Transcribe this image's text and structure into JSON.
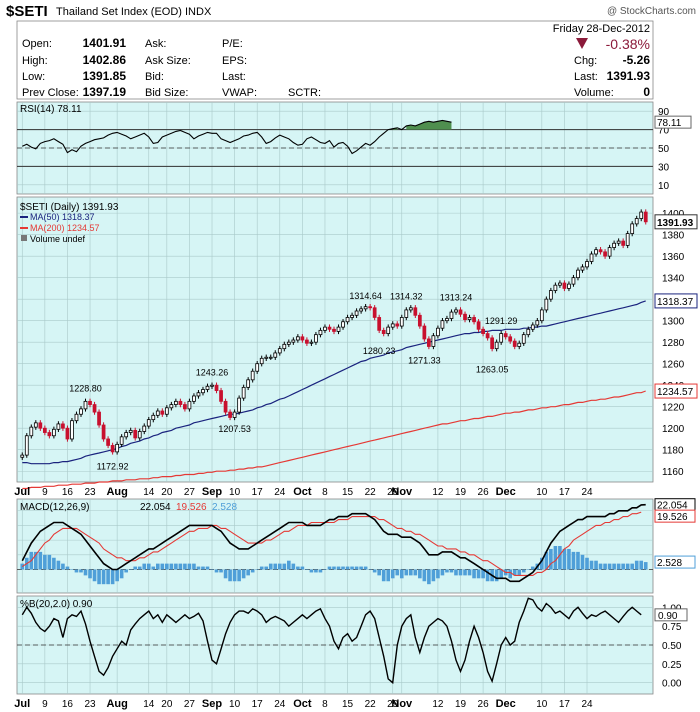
{
  "header": {
    "symbol": "$SETI",
    "name": "Thailand Set Index (EOD)  INDX",
    "brand": "@ StockCharts.com"
  },
  "quote": {
    "date": "Friday  28-Dec-2012",
    "pct_change": "-0.38%",
    "rows": [
      [
        "Open:",
        "1401.91",
        "Ask:",
        "",
        "P/E:",
        ""
      ],
      [
        "High:",
        "1402.86",
        "Ask Size:",
        "",
        "EPS:",
        ""
      ],
      [
        "Low:",
        "1391.85",
        "Bid:",
        "",
        "Last:",
        ""
      ],
      [
        "Prev Close:",
        "1397.19",
        "Bid Size:",
        "",
        "VWAP:",
        "SCTR:"
      ]
    ],
    "right_rows": [
      [
        "Chg:",
        "-5.26"
      ],
      [
        "Last:",
        "1391.93"
      ],
      [
        "Volume:",
        "0"
      ]
    ]
  },
  "colors": {
    "panel_bg": "#d6f5f5",
    "grid": "#a9c9c9",
    "up": "#000000",
    "down": "#c8102e",
    "ma50": "#1a237e",
    "ma200": "#e53935",
    "macd": "#000000",
    "signal": "#e53935",
    "histogram": "#4f9fd8",
    "rsi_fill": "#4f8f4f",
    "down_arrow": "#8b1a3a"
  },
  "chart_data": [
    {
      "type": "line",
      "title": "RSI(14) 78.11",
      "last_value": "78.11",
      "ylim": [
        0,
        100
      ],
      "yticks": [
        10,
        30,
        50,
        70,
        90
      ],
      "levels": [
        30,
        70
      ],
      "values": [
        52,
        54,
        51,
        49,
        55,
        57,
        58,
        60,
        57,
        54,
        45,
        48,
        46,
        52,
        55,
        57,
        59,
        60,
        61,
        64,
        66,
        67,
        65,
        63,
        60,
        62,
        64,
        66,
        62,
        55,
        56,
        62,
        64,
        66,
        68,
        69,
        67,
        65,
        60,
        63,
        65,
        67,
        66,
        66,
        60,
        58,
        56,
        58,
        60,
        63,
        64,
        66,
        67,
        62,
        55,
        57,
        61,
        64,
        62,
        60,
        56,
        53,
        54,
        60,
        62,
        59,
        56,
        55,
        58,
        51,
        55,
        56,
        52,
        44,
        47,
        51,
        55,
        53,
        57,
        62,
        66,
        70,
        71,
        72,
        70,
        74,
        75,
        74,
        76,
        78,
        79,
        78,
        79,
        80,
        79,
        78
      ]
    },
    {
      "type": "candlestick",
      "title": "$SETI (Daily) 1391.93",
      "series_labels": [
        "MA(50) 1318.37",
        "MA(200) 1234.57",
        "Volume undef"
      ],
      "last_value": "1391.93",
      "ma50_last": "1318.37",
      "ma200_last": "1234.57",
      "ylim": [
        1150,
        1415
      ],
      "yticks": [
        1160,
        1180,
        1200,
        1220,
        1240,
        1260,
        1280,
        1300,
        1320,
        1340,
        1360,
        1380,
        1400
      ],
      "xticks": [
        "Jul",
        "9",
        "16",
        "23",
        "Aug",
        "14",
        "20",
        "27",
        "Sep",
        "10",
        "17",
        "24",
        "Oct",
        "8",
        "15",
        "22",
        "29",
        "Nov",
        "12",
        "19",
        "26",
        "Dec",
        "10",
        "17",
        "24"
      ],
      "annotations": [
        {
          "label": "1228.80",
          "index": 14,
          "value": 1228.8,
          "pos": "above"
        },
        {
          "label": "1172.92",
          "index": 20,
          "value": 1172.92,
          "pos": "below"
        },
        {
          "label": "1243.26",
          "index": 42,
          "value": 1243.26,
          "pos": "above"
        },
        {
          "label": "1207.53",
          "index": 47,
          "value": 1207.53,
          "pos": "below"
        },
        {
          "label": "1314.64",
          "index": 76,
          "value": 1314.64,
          "pos": "above"
        },
        {
          "label": "1280.23",
          "index": 79,
          "value": 1280.23,
          "pos": "below"
        },
        {
          "label": "1314.32",
          "index": 85,
          "value": 1314.32,
          "pos": "above"
        },
        {
          "label": "1271.33",
          "index": 89,
          "value": 1271.33,
          "pos": "below"
        },
        {
          "label": "1313.24",
          "index": 96,
          "value": 1313.24,
          "pos": "above"
        },
        {
          "label": "1263.05",
          "index": 104,
          "value": 1263.05,
          "pos": "below"
        },
        {
          "label": "1291.29",
          "index": 106,
          "value": 1291.29,
          "pos": "above"
        }
      ],
      "close": [
        1175,
        1193,
        1201,
        1205,
        1200,
        1196,
        1193,
        1199,
        1204,
        1200,
        1190,
        1207,
        1213,
        1218,
        1225,
        1222,
        1215,
        1203,
        1190,
        1184,
        1178,
        1185,
        1192,
        1196,
        1198,
        1191,
        1197,
        1202,
        1208,
        1212,
        1216,
        1213,
        1219,
        1222,
        1225,
        1222,
        1218,
        1225,
        1230,
        1233,
        1236,
        1239,
        1240,
        1235,
        1225,
        1215,
        1210,
        1215,
        1228,
        1238,
        1245,
        1253,
        1260,
        1265,
        1266,
        1266,
        1270,
        1274,
        1278,
        1280,
        1282,
        1285,
        1282,
        1279,
        1280,
        1287,
        1291,
        1294,
        1292,
        1290,
        1294,
        1299,
        1303,
        1305,
        1309,
        1311,
        1313,
        1312,
        1303,
        1291,
        1288,
        1294,
        1297,
        1295,
        1303,
        1310,
        1312,
        1305,
        1295,
        1283,
        1276,
        1286,
        1293,
        1300,
        1302,
        1308,
        1310,
        1306,
        1301,
        1303,
        1299,
        1292,
        1288,
        1284,
        1274,
        1280,
        1288,
        1285,
        1281,
        1276,
        1279,
        1287,
        1292,
        1296,
        1300,
        1310,
        1320,
        1328,
        1333,
        1335,
        1330,
        1334,
        1340,
        1347,
        1350,
        1355,
        1362,
        1366,
        1364,
        1360,
        1368,
        1372,
        1374,
        1370,
        1381,
        1390,
        1395,
        1401,
        1391.93
      ],
      "ma50": [
        1168,
        1168,
        1167,
        1167,
        1167,
        1167,
        1167,
        1168,
        1168,
        1169,
        1169,
        1170,
        1171,
        1172,
        1174,
        1175,
        1176,
        1177,
        1178,
        1179,
        1180,
        1181,
        1183,
        1184,
        1186,
        1187,
        1188,
        1190,
        1191,
        1193,
        1194,
        1196,
        1197,
        1198,
        1200,
        1201,
        1202,
        1203,
        1205,
        1206,
        1207,
        1208,
        1209,
        1210,
        1211,
        1212,
        1213,
        1213,
        1214,
        1215,
        1216,
        1217,
        1219,
        1220,
        1222,
        1223,
        1225,
        1227,
        1228,
        1230,
        1232,
        1234,
        1236,
        1238,
        1240,
        1242,
        1244,
        1246,
        1248,
        1250,
        1252,
        1254,
        1256,
        1258,
        1260,
        1262,
        1263,
        1265,
        1266,
        1267,
        1268,
        1270,
        1271,
        1272,
        1273,
        1275,
        1276,
        1277,
        1278,
        1279,
        1280,
        1281,
        1282,
        1283,
        1284,
        1285,
        1286,
        1287,
        1288,
        1288,
        1289,
        1289,
        1290,
        1290,
        1291,
        1291,
        1291,
        1292,
        1292,
        1292,
        1292,
        1293,
        1293,
        1294,
        1294,
        1295,
        1295,
        1296,
        1297,
        1298,
        1299,
        1300,
        1301,
        1302,
        1303,
        1304,
        1305,
        1306,
        1307,
        1308,
        1309,
        1310,
        1311,
        1312,
        1313,
        1314,
        1315,
        1317,
        1318.37
      ],
      "ma200": [
        1144,
        1144,
        1145,
        1145,
        1145,
        1146,
        1146,
        1146,
        1147,
        1147,
        1147,
        1148,
        1148,
        1148,
        1149,
        1149,
        1149,
        1150,
        1150,
        1150,
        1151,
        1151,
        1151,
        1152,
        1152,
        1152,
        1153,
        1153,
        1153,
        1154,
        1154,
        1155,
        1155,
        1155,
        1156,
        1156,
        1157,
        1157,
        1157,
        1158,
        1158,
        1159,
        1159,
        1160,
        1160,
        1160,
        1161,
        1161,
        1162,
        1162,
        1163,
        1163,
        1164,
        1164,
        1165,
        1166,
        1167,
        1168,
        1169,
        1170,
        1171,
        1172,
        1173,
        1174,
        1175,
        1176,
        1177,
        1178,
        1179,
        1180,
        1181,
        1182,
        1183,
        1184,
        1185,
        1186,
        1187,
        1188,
        1189,
        1190,
        1191,
        1192,
        1193,
        1194,
        1195,
        1196,
        1197,
        1198,
        1199,
        1200,
        1201,
        1202,
        1203,
        1204,
        1204,
        1205,
        1206,
        1207,
        1207,
        1208,
        1209,
        1209,
        1210,
        1211,
        1211,
        1212,
        1213,
        1214,
        1214,
        1215,
        1215,
        1216,
        1217,
        1217,
        1218,
        1219,
        1219,
        1220,
        1220,
        1221,
        1222,
        1222,
        1223,
        1224,
        1224,
        1225,
        1226,
        1226,
        1227,
        1227,
        1228,
        1229,
        1229,
        1230,
        1231,
        1232,
        1233,
        1233,
        1234.57
      ]
    },
    {
      "type": "line",
      "title": "MACD(12,26,9)",
      "legend": [
        "22.054",
        "19.526",
        "2.528"
      ],
      "last_values": [
        "22.054",
        "19.526",
        "2.528"
      ],
      "ylim": [
        -8,
        24
      ],
      "macd": [
        3,
        6,
        9,
        11,
        13,
        14,
        15,
        16,
        16,
        16,
        15,
        14,
        13,
        12,
        10,
        8,
        6,
        4,
        2,
        1,
        0,
        0,
        1,
        2,
        3,
        4,
        5,
        6,
        7,
        7,
        8,
        9,
        10,
        11,
        12,
        13,
        14,
        15,
        15,
        15,
        15,
        15,
        15,
        14,
        13,
        11,
        9,
        8,
        7,
        7,
        7,
        8,
        9,
        10,
        11,
        12,
        13,
        14,
        15,
        16,
        16,
        16,
        16,
        15,
        15,
        15,
        15,
        16,
        17,
        17,
        18,
        18,
        18,
        19,
        19,
        19,
        19,
        18,
        17,
        15,
        13,
        12,
        12,
        12,
        11,
        11,
        11,
        10,
        9,
        7,
        5,
        5,
        5,
        6,
        6,
        6,
        5,
        4,
        4,
        3,
        2,
        1,
        0,
        -1,
        -2,
        -3,
        -3,
        -3,
        -4,
        -4,
        -4,
        -3,
        -2,
        -1,
        1,
        3,
        6,
        9,
        11,
        13,
        14,
        15,
        16,
        17,
        17,
        18,
        18,
        18,
        18,
        18,
        19,
        19,
        20,
        20,
        20,
        21,
        21,
        22,
        22.054
      ],
      "signal": [
        1,
        2,
        3,
        5,
        7,
        9,
        10,
        12,
        13,
        14,
        14,
        14,
        14,
        13,
        12,
        11,
        10,
        9,
        7,
        6,
        5,
        4,
        4,
        3,
        3,
        3,
        4,
        4,
        5,
        6,
        6,
        7,
        8,
        9,
        10,
        11,
        12,
        13,
        13,
        14,
        14,
        14,
        15,
        15,
        14,
        14,
        13,
        12,
        11,
        10,
        9,
        9,
        9,
        9,
        10,
        10,
        11,
        12,
        13,
        13,
        14,
        15,
        15,
        15,
        16,
        16,
        16,
        16,
        16,
        16,
        17,
        17,
        17,
        18,
        18,
        18,
        18,
        18,
        18,
        17,
        17,
        16,
        15,
        14,
        14,
        13,
        13,
        12,
        12,
        11,
        10,
        9,
        8,
        8,
        7,
        7,
        7,
        6,
        6,
        5,
        5,
        4,
        3,
        3,
        2,
        1,
        0,
        -1,
        -1,
        -2,
        -2,
        -2,
        -2,
        -2,
        -1,
        -1,
        0,
        2,
        3,
        5,
        7,
        8,
        10,
        11,
        12,
        13,
        14,
        15,
        15,
        16,
        16,
        17,
        17,
        18,
        18,
        19,
        19,
        19.526
      ],
      "histogram": [
        2,
        4,
        6,
        6,
        6,
        5,
        5,
        4,
        3,
        2,
        1,
        0,
        -1,
        -1,
        -2,
        -3,
        -4,
        -5,
        -5,
        -5,
        -5,
        -4,
        -3,
        -1,
        0,
        1,
        1,
        2,
        2,
        1,
        2,
        2,
        2,
        2,
        2,
        2,
        2,
        2,
        2,
        1,
        1,
        1,
        0,
        -1,
        -1,
        -3,
        -4,
        -4,
        -4,
        -3,
        -2,
        -1,
        0,
        1,
        1,
        2,
        2,
        2,
        2,
        3,
        2,
        1,
        1,
        0,
        -1,
        -1,
        -1,
        0,
        1,
        1,
        1,
        1,
        1,
        1,
        1,
        1,
        1,
        0,
        -1,
        -2,
        -4,
        -4,
        -3,
        -2,
        -3,
        -2,
        -2,
        -2,
        -3,
        -4,
        -5,
        -4,
        -3,
        -2,
        -1,
        -1,
        -2,
        -2,
        -2,
        -2,
        -3,
        -3,
        -3,
        -4,
        -4,
        -4,
        -3,
        -2,
        -3,
        -2,
        -2,
        -1,
        0,
        1,
        2,
        4,
        6,
        7,
        8,
        8,
        7,
        7,
        6,
        6,
        5,
        4,
        3,
        3,
        2,
        2,
        2,
        2,
        2,
        2,
        2,
        2,
        3,
        3,
        2.528
      ]
    },
    {
      "type": "line",
      "title": "%B(20,2.0) 0.90",
      "last_value": "0.90",
      "ylim": [
        -0.15,
        1.15
      ],
      "yticks": [
        0.0,
        0.25,
        0.5,
        0.75,
        1.0
      ],
      "ytick_labels": [
        "0.00",
        "0.25",
        "0.50",
        "0.75",
        "1.00"
      ],
      "values": [
        0.9,
        1.0,
        0.92,
        0.8,
        0.72,
        0.68,
        0.75,
        0.85,
        0.82,
        0.6,
        0.85,
        0.9,
        0.88,
        0.95,
        0.78,
        0.55,
        0.35,
        0.15,
        0.1,
        0.2,
        0.35,
        0.45,
        0.55,
        0.5,
        0.7,
        0.78,
        0.85,
        0.9,
        0.95,
        0.85,
        0.9,
        0.8,
        0.9,
        0.85,
        0.8,
        0.85,
        0.9,
        0.85,
        0.88,
        0.92,
        0.82,
        0.55,
        0.3,
        0.25,
        0.45,
        0.65,
        0.8,
        0.9,
        0.95,
        0.95,
        0.92,
        0.98,
        0.95,
        0.9,
        0.8,
        0.85,
        0.88,
        0.85,
        0.82,
        0.75,
        0.8,
        0.85,
        0.9,
        0.85,
        0.9,
        0.95,
        0.98,
        0.85,
        0.75,
        0.55,
        0.45,
        0.6,
        0.65,
        0.55,
        0.6,
        0.75,
        0.9,
        0.95,
        0.85,
        0.6,
        0.35,
        0.05,
        0.0,
        0.5,
        0.75,
        0.85,
        0.9,
        0.6,
        0.4,
        0.6,
        0.75,
        0.8,
        0.85,
        0.82,
        0.75,
        0.55,
        0.3,
        0.15,
        0.3,
        0.55,
        0.75,
        0.6,
        0.4,
        0.15,
        0.02,
        0.25,
        0.5,
        0.6,
        0.5,
        0.55,
        0.8,
        0.95,
        1.12,
        1.1,
        1.0,
        0.95,
        1.05,
        1.0,
        0.92,
        0.95,
        0.9,
        0.85,
        0.95,
        1.0,
        0.92,
        0.85,
        0.9,
        0.88,
        0.92,
        0.95,
        0.9,
        0.85,
        0.8,
        0.88,
        0.95,
        1.0,
        0.95,
        0.9
      ]
    }
  ]
}
